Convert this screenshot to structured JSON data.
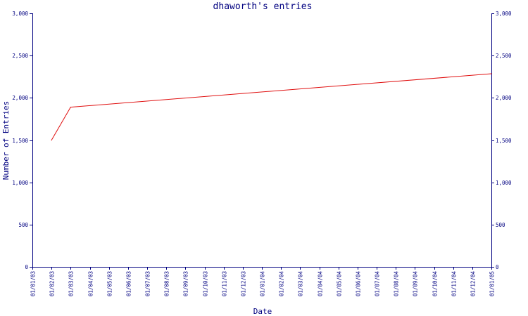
{
  "chart_data": {
    "type": "line",
    "title": "dhaworth's entries",
    "xlabel": "Date",
    "ylabel": "Number of Entries",
    "ylim": [
      0,
      3000
    ],
    "y_ticks": [
      0,
      500,
      1000,
      1500,
      2000,
      2500,
      3000
    ],
    "y_tick_labels": [
      "0",
      "500",
      "1,000",
      "1,500",
      "2,000",
      "2,500",
      "3,000"
    ],
    "categories": [
      "01/01/03",
      "01/02/03",
      "01/03/03",
      "01/04/03",
      "01/05/03",
      "01/06/03",
      "01/07/03",
      "01/08/03",
      "01/09/03",
      "01/10/03",
      "01/11/03",
      "01/12/03",
      "01/01/04",
      "01/02/04",
      "01/03/04",
      "01/04/04",
      "01/05/04",
      "01/06/04",
      "01/07/04",
      "01/08/04",
      "01/09/04",
      "01/10/04",
      "01/11/04",
      "01/12/04",
      "01/01/05"
    ],
    "series": [
      {
        "color": "#e01010",
        "x": [
          "01/02/03",
          "01/03/03",
          "01/01/05"
        ],
        "values": [
          1500,
          1890,
          2285
        ]
      }
    ],
    "grid": false,
    "axis_color": "#000080"
  }
}
